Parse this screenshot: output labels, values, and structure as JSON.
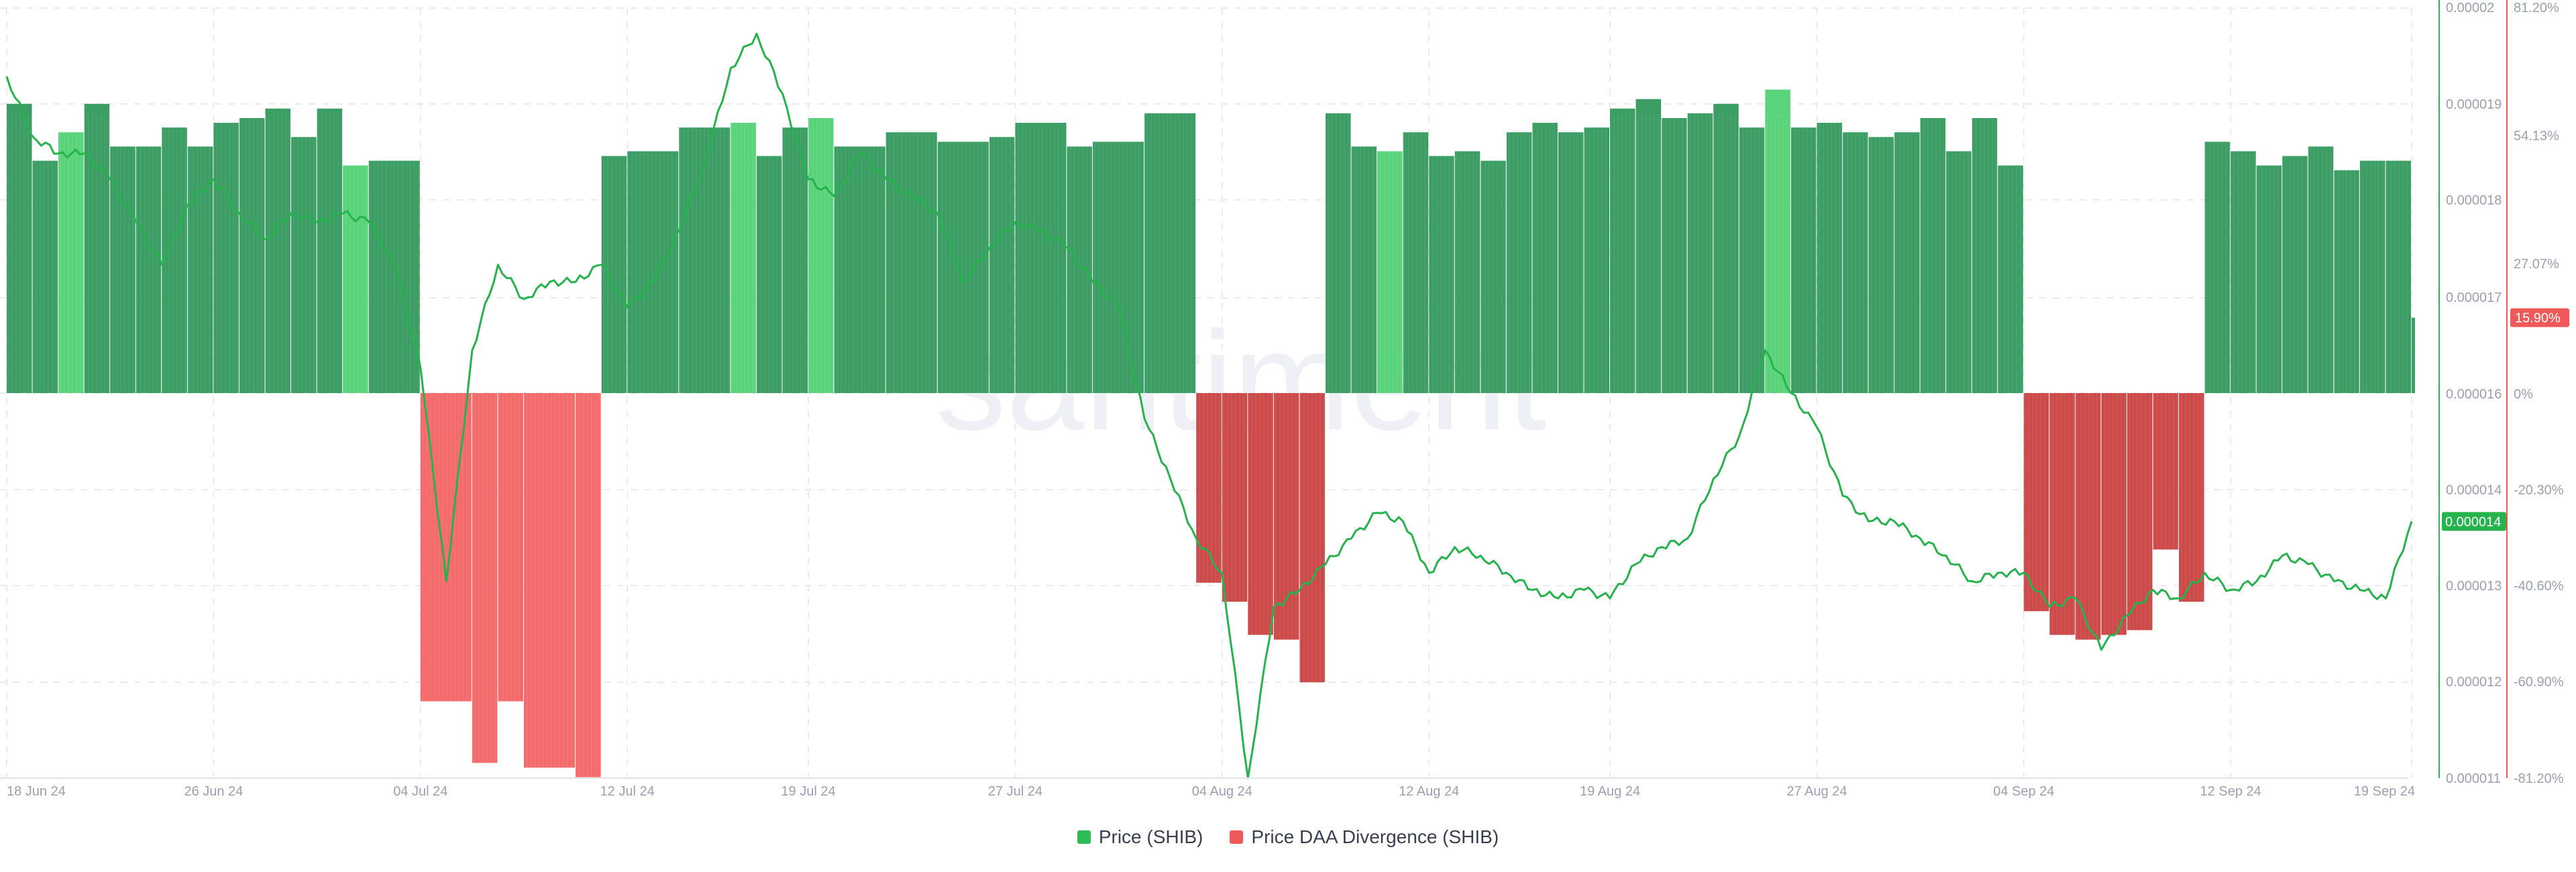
{
  "chart_data": {
    "type": "bar",
    "watermark": "santiment",
    "x_ticks": [
      "18 Jun 24",
      "26 Jun 24",
      "04 Jul 24",
      "12 Jul 24",
      "19 Jul 24",
      "27 Jul 24",
      "04 Aug 24",
      "12 Aug 24",
      "19 Aug 24",
      "27 Aug 24",
      "04 Sep 24",
      "12 Sep 24",
      "19 Sep 24"
    ],
    "y_left_ticks": [
      "0.00002",
      "0.000019",
      "0.000018",
      "0.000017",
      "0.000016",
      "0.000014",
      "0.000013",
      "0.000012",
      "0.000011"
    ],
    "y_right_ticks": [
      "81.20%",
      "54.13%",
      "27.07%",
      "0%",
      "-20.30%",
      "-40.60%",
      "-60.90%",
      "-81.20%"
    ],
    "y_right_range": [
      -81.2,
      81.2
    ],
    "price_scale_label_range": [
      1.1e-05,
      2e-05
    ],
    "grid": true,
    "legend_position": "bottom-center",
    "series": [
      {
        "name": "Price (SHIB)",
        "type": "line",
        "color": "#26b24d",
        "badge": "0.000014",
        "points_daily": [
          [
            "18 Jun 24",
            1.92e-05
          ],
          [
            "19 Jun 24",
            1.85e-05
          ],
          [
            "20 Jun 24",
            1.83e-05
          ],
          [
            "21 Jun 24",
            1.83e-05
          ],
          [
            "22 Jun 24",
            1.8e-05
          ],
          [
            "23 Jun 24",
            1.75e-05
          ],
          [
            "24 Jun 24",
            1.7e-05
          ],
          [
            "25 Jun 24",
            1.77e-05
          ],
          [
            "26 Jun 24",
            1.8e-05
          ],
          [
            "27 Jun 24",
            1.76e-05
          ],
          [
            "28 Jun 24",
            1.73e-05
          ],
          [
            "29 Jun 24",
            1.76e-05
          ],
          [
            "30 Jun 24",
            1.75e-05
          ],
          [
            "01 Jul 24",
            1.76e-05
          ],
          [
            "02 Jul 24",
            1.75e-05
          ],
          [
            "03 Jul 24",
            1.7e-05
          ],
          [
            "04 Jul 24",
            1.58e-05
          ],
          [
            "05 Jul 24",
            1.33e-05
          ],
          [
            "06 Jul 24",
            1.6e-05
          ],
          [
            "07 Jul 24",
            1.7e-05
          ],
          [
            "08 Jul 24",
            1.66e-05
          ],
          [
            "09 Jul 24",
            1.68e-05
          ],
          [
            "10 Jul 24",
            1.68e-05
          ],
          [
            "11 Jul 24",
            1.7e-05
          ],
          [
            "12 Jul 24",
            1.65e-05
          ],
          [
            "13 Jul 24",
            1.68e-05
          ],
          [
            "14 Jul 24",
            1.74e-05
          ],
          [
            "15 Jul 24",
            1.82e-05
          ],
          [
            "16 Jul 24",
            1.93e-05
          ],
          [
            "17 Jul 24",
            1.97e-05
          ],
          [
            "18 Jul 24",
            1.9e-05
          ],
          [
            "19 Jul 24",
            1.8e-05
          ],
          [
            "20 Jul 24",
            1.78e-05
          ],
          [
            "21 Jul 24",
            1.83e-05
          ],
          [
            "22 Jul 24",
            1.8e-05
          ],
          [
            "23 Jul 24",
            1.78e-05
          ],
          [
            "24 Jul 24",
            1.76e-05
          ],
          [
            "25 Jul 24",
            1.68e-05
          ],
          [
            "26 Jul 24",
            1.72e-05
          ],
          [
            "27 Jul 24",
            1.75e-05
          ],
          [
            "28 Jul 24",
            1.74e-05
          ],
          [
            "29 Jul 24",
            1.72e-05
          ],
          [
            "30 Jul 24",
            1.68e-05
          ],
          [
            "31 Jul 24",
            1.65e-05
          ],
          [
            "01 Aug 24",
            1.52e-05
          ],
          [
            "02 Aug 24",
            1.45e-05
          ],
          [
            "03 Aug 24",
            1.38e-05
          ],
          [
            "04 Aug 24",
            1.34e-05
          ],
          [
            "05 Aug 24",
            1.1e-05
          ],
          [
            "06 Aug 24",
            1.3e-05
          ],
          [
            "07 Aug 24",
            1.32e-05
          ],
          [
            "08 Aug 24",
            1.35e-05
          ],
          [
            "09 Aug 24",
            1.38e-05
          ],
          [
            "10 Aug 24",
            1.41e-05
          ],
          [
            "11 Aug 24",
            1.4e-05
          ],
          [
            "12 Aug 24",
            1.34e-05
          ],
          [
            "13 Aug 24",
            1.37e-05
          ],
          [
            "14 Aug 24",
            1.36e-05
          ],
          [
            "15 Aug 24",
            1.34e-05
          ],
          [
            "16 Aug 24",
            1.32e-05
          ],
          [
            "17 Aug 24",
            1.31e-05
          ],
          [
            "18 Aug 24",
            1.32e-05
          ],
          [
            "19 Aug 24",
            1.31e-05
          ],
          [
            "20 Aug 24",
            1.35e-05
          ],
          [
            "21 Aug 24",
            1.37e-05
          ],
          [
            "22 Aug 24",
            1.38e-05
          ],
          [
            "23 Aug 24",
            1.45e-05
          ],
          [
            "24 Aug 24",
            1.5e-05
          ],
          [
            "25 Aug 24",
            1.6e-05
          ],
          [
            "26 Aug 24",
            1.55e-05
          ],
          [
            "27 Aug 24",
            1.51e-05
          ],
          [
            "28 Aug 24",
            1.43e-05
          ],
          [
            "29 Aug 24",
            1.4e-05
          ],
          [
            "30 Aug 24",
            1.4e-05
          ],
          [
            "31 Aug 24",
            1.38e-05
          ],
          [
            "01 Sep 24",
            1.36e-05
          ],
          [
            "02 Sep 24",
            1.33e-05
          ],
          [
            "03 Sep 24",
            1.34e-05
          ],
          [
            "04 Sep 24",
            1.34e-05
          ],
          [
            "05 Sep 24",
            1.3e-05
          ],
          [
            "06 Sep 24",
            1.31e-05
          ],
          [
            "07 Sep 24",
            1.25e-05
          ],
          [
            "08 Sep 24",
            1.29e-05
          ],
          [
            "09 Sep 24",
            1.32e-05
          ],
          [
            "10 Sep 24",
            1.31e-05
          ],
          [
            "11 Sep 24",
            1.34e-05
          ],
          [
            "12 Sep 24",
            1.32e-05
          ],
          [
            "13 Sep 24",
            1.33e-05
          ],
          [
            "14 Sep 24",
            1.36e-05
          ],
          [
            "15 Sep 24",
            1.35e-05
          ],
          [
            "16 Sep 24",
            1.33e-05
          ],
          [
            "17 Sep 24",
            1.32e-05
          ],
          [
            "18 Sep 24",
            1.31e-05
          ],
          [
            "19 Sep 24",
            1.4e-05
          ]
        ]
      },
      {
        "name": "Price DAA Divergence (SHIB)",
        "type": "bar",
        "color_positive": "#3d9e65",
        "color_positive_highlight": "#5ad47a",
        "color_negative": "#f46b6b",
        "color_negative_dark": "#cc4a4a",
        "badge": "15.90%",
        "segments_percent": [
          [
            "18 Jun 24",
            "19 Jun 24",
            61.0
          ],
          [
            "19 Jun 24",
            "20 Jun 24",
            49.0
          ],
          [
            "20 Jun 24",
            "21 Jun 24",
            55.0
          ],
          [
            "21 Jun 24",
            "22 Jun 24",
            61.0
          ],
          [
            "22 Jun 24",
            "23 Jun 24",
            52.0
          ],
          [
            "23 Jun 24",
            "24 Jun 24",
            52.0
          ],
          [
            "24 Jun 24",
            "25 Jun 24",
            56.0
          ],
          [
            "25 Jun 24",
            "26 Jun 24",
            52.0
          ],
          [
            "26 Jun 24",
            "27 Jun 24",
            57.0
          ],
          [
            "27 Jun 24",
            "28 Jun 24",
            58.0
          ],
          [
            "28 Jun 24",
            "29 Jun 24",
            60.0
          ],
          [
            "29 Jun 24",
            "30 Jun 24",
            54.0
          ],
          [
            "30 Jun 24",
            "01 Jul 24",
            60.0
          ],
          [
            "01 Jul 24",
            "02 Jul 24",
            48.0
          ],
          [
            "02 Jul 24",
            "04 Jul 24",
            49.0
          ],
          [
            "04 Jul 24",
            "06 Jul 24",
            -65.0
          ],
          [
            "06 Jul 24",
            "07 Jul 24",
            -78.0
          ],
          [
            "07 Jul 24",
            "08 Jul 24",
            -65.0
          ],
          [
            "08 Jul 24",
            "10 Jul 24",
            -79.0
          ],
          [
            "10 Jul 24",
            "11 Jul 24",
            -81.0
          ],
          [
            "11 Jul 24",
            "12 Jul 24",
            50.0
          ],
          [
            "12 Jul 24",
            "14 Jul 24",
            51.0
          ],
          [
            "14 Jul 24",
            "16 Jul 24",
            56.0
          ],
          [
            "16 Jul 24",
            "17 Jul 24",
            57.0
          ],
          [
            "17 Jul 24",
            "18 Jul 24",
            50.0
          ],
          [
            "18 Jul 24",
            "19 Jul 24",
            56.0
          ],
          [
            "19 Jul 24",
            "20 Jul 24",
            58.0
          ],
          [
            "20 Jul 24",
            "22 Jul 24",
            52.0
          ],
          [
            "22 Jul 24",
            "24 Jul 24",
            55.0
          ],
          [
            "24 Jul 24",
            "26 Jul 24",
            53.0
          ],
          [
            "26 Jul 24",
            "27 Jul 24",
            54.0
          ],
          [
            "27 Jul 24",
            "29 Jul 24",
            57.0
          ],
          [
            "29 Jul 24",
            "30 Jul 24",
            52.0
          ],
          [
            "30 Jul 24",
            "01 Aug 24",
            53.0
          ],
          [
            "01 Aug 24",
            "03 Aug 24",
            59.0
          ],
          [
            "03 Aug 24",
            "04 Aug 24",
            -40.0
          ],
          [
            "04 Aug 24",
            "05 Aug 24",
            -44.0
          ],
          [
            "05 Aug 24",
            "06 Aug 24",
            -51.0
          ],
          [
            "06 Aug 24",
            "07 Aug 24",
            -52.0
          ],
          [
            "07 Aug 24",
            "08 Aug 24",
            -61.0
          ],
          [
            "08 Aug 24",
            "09 Aug 24",
            59.0
          ],
          [
            "09 Aug 24",
            "10 Aug 24",
            52.0
          ],
          [
            "10 Aug 24",
            "11 Aug 24",
            51.0
          ],
          [
            "11 Aug 24",
            "12 Aug 24",
            55.0
          ],
          [
            "12 Aug 24",
            "13 Aug 24",
            50.0
          ],
          [
            "13 Aug 24",
            "14 Aug 24",
            51.0
          ],
          [
            "14 Aug 24",
            "15 Aug 24",
            49.0
          ],
          [
            "15 Aug 24",
            "16 Aug 24",
            55.0
          ],
          [
            "16 Aug 24",
            "17 Aug 24",
            57.0
          ],
          [
            "17 Aug 24",
            "18 Aug 24",
            55.0
          ],
          [
            "18 Aug 24",
            "19 Aug 24",
            56.0
          ],
          [
            "19 Aug 24",
            "20 Aug 24",
            60.0
          ],
          [
            "20 Aug 24",
            "21 Aug 24",
            62.0
          ],
          [
            "21 Aug 24",
            "22 Aug 24",
            58.0
          ],
          [
            "22 Aug 24",
            "23 Aug 24",
            59.0
          ],
          [
            "23 Aug 24",
            "24 Aug 24",
            61.0
          ],
          [
            "24 Aug 24",
            "25 Aug 24",
            56.0
          ],
          [
            "25 Aug 24",
            "26 Aug 24",
            64.0
          ],
          [
            "26 Aug 24",
            "27 Aug 24",
            56.0
          ],
          [
            "27 Aug 24",
            "28 Aug 24",
            57.0
          ],
          [
            "28 Aug 24",
            "29 Aug 24",
            55.0
          ],
          [
            "29 Aug 24",
            "30 Aug 24",
            54.0
          ],
          [
            "30 Aug 24",
            "31 Aug 24",
            55.0
          ],
          [
            "31 Aug 24",
            "01 Sep 24",
            58.0
          ],
          [
            "01 Sep 24",
            "02 Sep 24",
            51.0
          ],
          [
            "02 Sep 24",
            "03 Sep 24",
            58.0
          ],
          [
            "03 Sep 24",
            "04 Sep 24",
            48.0
          ],
          [
            "04 Sep 24",
            "05 Sep 24",
            -46.0
          ],
          [
            "05 Sep 24",
            "06 Sep 24",
            -51.0
          ],
          [
            "06 Sep 24",
            "07 Sep 24",
            -52.0
          ],
          [
            "07 Sep 24",
            "08 Sep 24",
            -51.0
          ],
          [
            "08 Sep 24",
            "09 Sep 24",
            -50.0
          ],
          [
            "09 Sep 24",
            "10 Sep 24",
            -33.0
          ],
          [
            "10 Sep 24",
            "11 Sep 24",
            -44.0
          ],
          [
            "11 Sep 24",
            "12 Sep 24",
            53.0
          ],
          [
            "12 Sep 24",
            "13 Sep 24",
            51.0
          ],
          [
            "13 Sep 24",
            "14 Sep 24",
            48.0
          ],
          [
            "14 Sep 24",
            "15 Sep 24",
            50.0
          ],
          [
            "15 Sep 24",
            "16 Sep 24",
            52.0
          ],
          [
            "16 Sep 24",
            "17 Sep 24",
            47.0
          ],
          [
            "17 Sep 24",
            "18 Sep 24",
            49.0
          ],
          [
            "18 Sep 24",
            "19 Sep 24",
            49.0
          ],
          [
            "19 Sep 24",
            "19 Sep 24",
            15.9
          ]
        ]
      }
    ],
    "legend": [
      {
        "label": "Price (SHIB)",
        "color": "#2dbb55"
      },
      {
        "label": "Price DAA Divergence (SHIB)",
        "color": "#ee5a5a"
      }
    ]
  }
}
